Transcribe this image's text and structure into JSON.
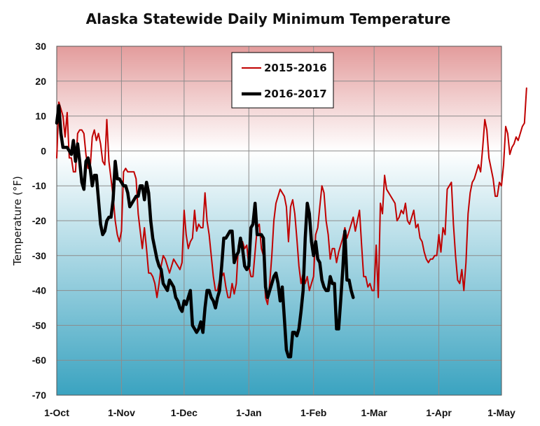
{
  "chart_data": {
    "type": "line",
    "title": "Alaska Statewide Daily Minimum Temperature",
    "xlabel": "",
    "ylabel": "Temperature (°F)",
    "ylim": [
      -70,
      30
    ],
    "yticks": [
      30,
      20,
      10,
      0,
      -10,
      -20,
      -30,
      -40,
      -50,
      -60,
      -70
    ],
    "xlim_day": [
      0,
      212
    ],
    "xticks": [
      {
        "label": "1-Oct",
        "day": 0
      },
      {
        "label": "1-Nov",
        "day": 31
      },
      {
        "label": "1-Dec",
        "day": 61
      },
      {
        "label": "1-Jan",
        "day": 92
      },
      {
        "label": "1-Feb",
        "day": 123
      },
      {
        "label": "1-Mar",
        "day": 152
      },
      {
        "label": "1-Apr",
        "day": 183
      },
      {
        "label": "1-May",
        "day": 213
      }
    ],
    "x_unit_note": "",
    "grid": true,
    "legend": "top-center",
    "series": [
      {
        "name": "2015-2016",
        "color": "#c00000",
        "width": 2,
        "values": [
          -2,
          14,
          12,
          10,
          4,
          11,
          -2,
          -2,
          -6,
          -6,
          5,
          6,
          6,
          5,
          -1,
          -5,
          -5,
          4,
          6,
          3,
          5,
          2,
          -3,
          -4,
          9,
          -3,
          -8,
          -13,
          -20,
          -24,
          -26,
          -23,
          -6,
          -5,
          -6,
          -6,
          -6,
          -6,
          -8,
          -18,
          -23,
          -28,
          -22,
          -28,
          -35,
          -35,
          -36,
          -38,
          -42,
          -38,
          -33,
          -30,
          -31,
          -33,
          -35,
          -33,
          -31,
          -32,
          -33,
          -34,
          -32,
          -17,
          -24,
          -28,
          -26,
          -25,
          -17,
          -23,
          -21,
          -22,
          -22,
          -12,
          -20,
          -24,
          -30,
          -36,
          -40,
          -40,
          -37,
          -36,
          -35,
          -39,
          -42,
          -42,
          -38,
          -41,
          -38,
          -27,
          -27,
          -26,
          -28,
          -27,
          -33,
          -36,
          -36,
          -29,
          -22,
          -21,
          -28,
          -30,
          -42,
          -44,
          -38,
          -30,
          -20,
          -15,
          -13,
          -11,
          -12,
          -13,
          -16,
          -26,
          -16,
          -14,
          -18,
          -25,
          -33,
          -38,
          -35,
          -38,
          -36,
          -40,
          -38,
          -36,
          -24,
          -22,
          -16,
          -10,
          -12,
          -20,
          -24,
          -31,
          -28,
          -28,
          -32,
          -29,
          -27,
          -25,
          -22,
          -25,
          -23,
          -21,
          -19,
          -23,
          -20,
          -17,
          -27,
          -36,
          -36,
          -39,
          -38,
          -40,
          -40,
          -27,
          -42,
          -15,
          -18,
          -7,
          -11,
          -12,
          -13,
          -14,
          -15,
          -20,
          -19,
          -17,
          -18,
          -15,
          -20,
          -21,
          -19,
          -17,
          -22,
          -21,
          -25,
          -26,
          -29,
          -31,
          -32,
          -31,
          -31,
          -30,
          -30,
          -24,
          -29,
          -22,
          -24,
          -11,
          -10,
          -9,
          -21,
          -30,
          -37,
          -38,
          -34,
          -40,
          -32,
          -18,
          -12,
          -9,
          -8,
          -6,
          -4,
          -6,
          1,
          9,
          6,
          -2,
          -5,
          -8,
          -13,
          -13,
          -9,
          -10,
          -4,
          7,
          5,
          -1,
          1,
          2,
          4,
          3,
          5,
          7,
          8,
          18
        ]
      },
      {
        "name": "2016-2017",
        "color": "#000000",
        "width": 4.5,
        "values": [
          8,
          13,
          5,
          1,
          1,
          1,
          0,
          -1,
          3,
          -3,
          2,
          -3,
          -9,
          -11,
          -3,
          -2,
          -5,
          -10,
          -7,
          -7,
          -14,
          -21,
          -24,
          -23,
          -20,
          -19,
          -19,
          -14,
          -3,
          -8,
          -8,
          -9,
          -10,
          -10,
          -12,
          -16,
          -15,
          -14,
          -13,
          -13,
          -10,
          -10,
          -14,
          -9,
          -12,
          -20,
          -25,
          -28,
          -31,
          -33,
          -34,
          -38,
          -39,
          -40,
          -37,
          -38,
          -39,
          -42,
          -43,
          -45,
          -46,
          -43,
          -44,
          -42,
          -40,
          -50,
          -51,
          -52,
          -51,
          -49,
          -52,
          -45,
          -40,
          -40,
          -42,
          -43,
          -45,
          -42,
          -40,
          -33,
          -25,
          -25,
          -24,
          -23,
          -23,
          -32,
          -30,
          -29,
          -25,
          -28,
          -33,
          -34,
          -33,
          -22,
          -21,
          -15,
          -24,
          -24,
          -24,
          -25,
          -39,
          -42,
          -40,
          -38,
          -36,
          -35,
          -38,
          -43,
          -39,
          -48,
          -57,
          -59,
          -59,
          -52,
          -52,
          -53,
          -51,
          -46,
          -40,
          -25,
          -15,
          -18,
          -26,
          -30,
          -26,
          -31,
          -32,
          -37,
          -39,
          -40,
          -40,
          -36,
          -38,
          -38,
          -51,
          -51,
          -43,
          -34,
          -23,
          -37,
          -37,
          -40,
          -42
        ]
      }
    ]
  }
}
